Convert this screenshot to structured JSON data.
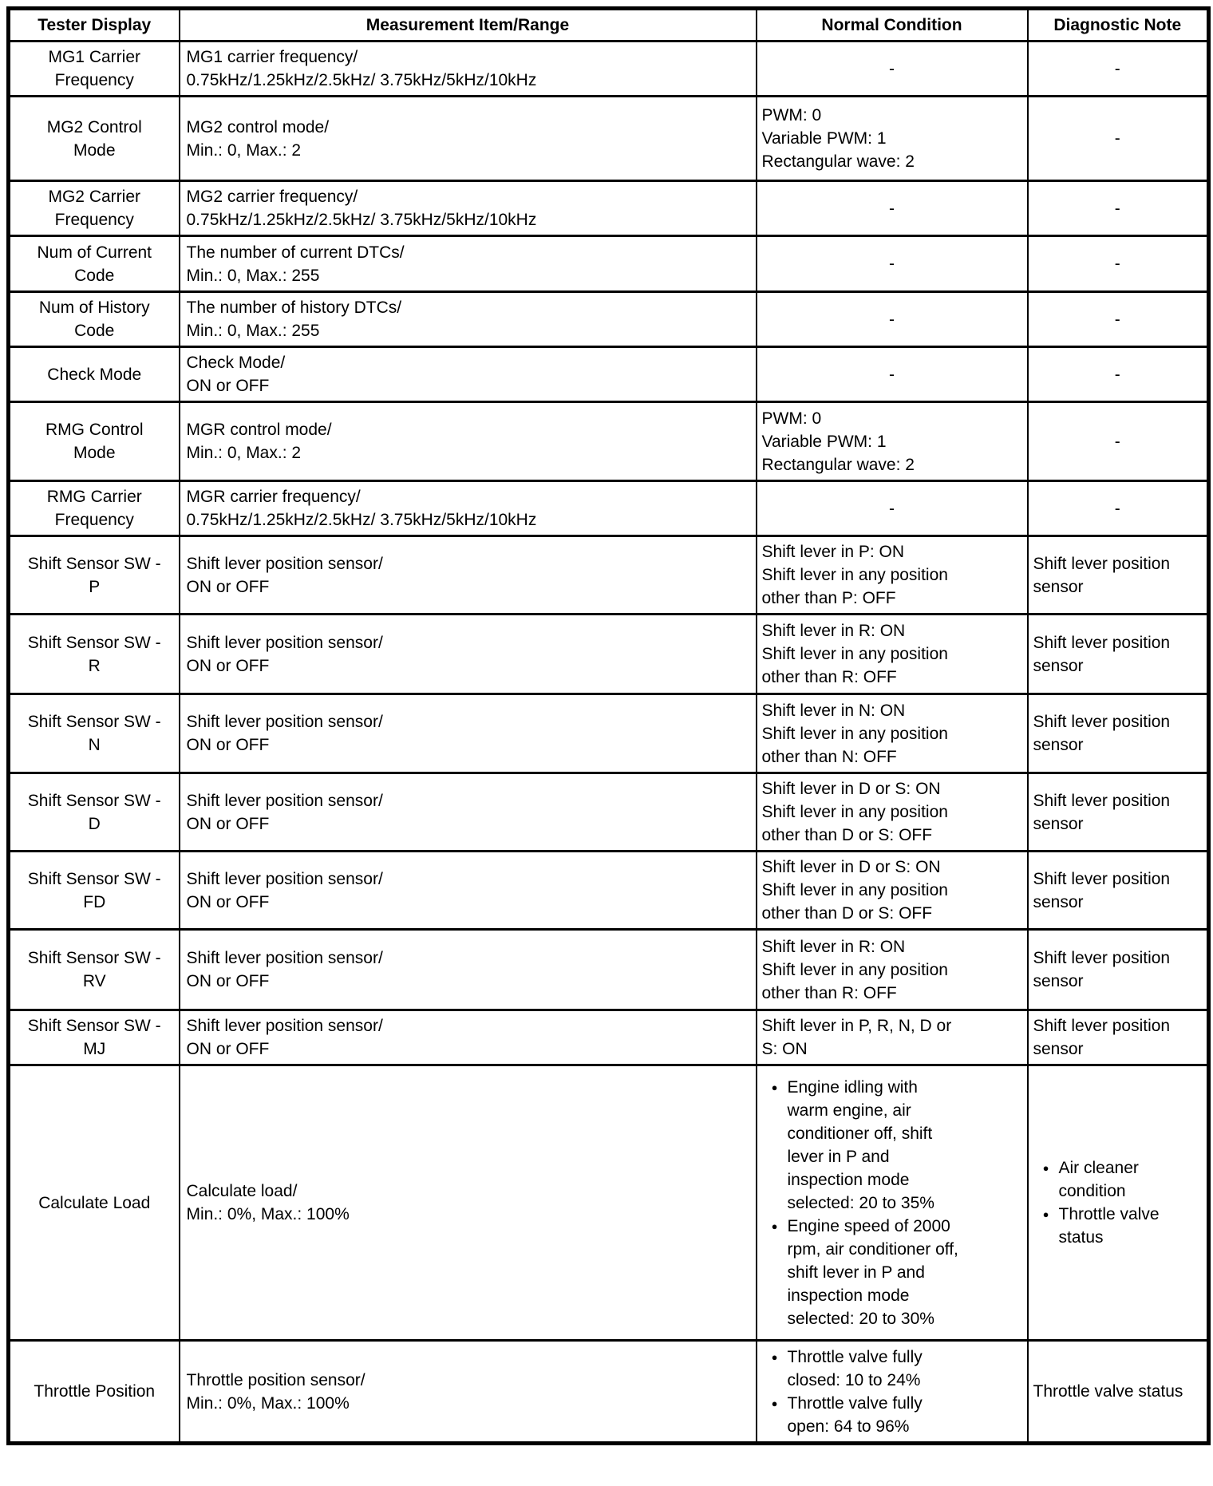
{
  "table": {
    "headers": [
      "Tester Display",
      "Measurement Item/Range",
      "Normal Condition",
      "Diagnostic Note"
    ],
    "rows": [
      {
        "display": [
          "MG1 Carrier",
          "Frequency"
        ],
        "item": [
          "MG1 carrier frequency/",
          "0.75kHz/1.25kHz/2.5kHz/ 3.75kHz/5kHz/10kHz"
        ],
        "condition": {
          "text": [
            "-"
          ],
          "center": true
        },
        "note": {
          "text": [
            "-"
          ],
          "center": true
        }
      },
      {
        "display": [
          "MG2 Control",
          "Mode"
        ],
        "item": [
          "MG2 control mode/",
          "Min.: 0, Max.: 2"
        ],
        "condition": {
          "text": [
            "PWM: 0",
            "Variable PWM: 1",
            "Rectangular wave: 2"
          ]
        },
        "note": {
          "text": [
            "-"
          ],
          "center": true
        }
      },
      {
        "display": [
          "MG2 Carrier",
          "Frequency"
        ],
        "item": [
          "MG2 carrier frequency/",
          "0.75kHz/1.25kHz/2.5kHz/ 3.75kHz/5kHz/10kHz"
        ],
        "condition": {
          "text": [
            "-"
          ],
          "center": true
        },
        "note": {
          "text": [
            "-"
          ],
          "center": true
        }
      },
      {
        "display": [
          "Num of Current",
          "Code"
        ],
        "item": [
          "The number of current DTCs/",
          "Min.: 0, Max.: 255"
        ],
        "condition": {
          "text": [
            "-"
          ],
          "center": true
        },
        "note": {
          "text": [
            "-"
          ],
          "center": true
        }
      },
      {
        "display": [
          "Num of History",
          "Code"
        ],
        "item": [
          "The number of history DTCs/",
          "Min.: 0, Max.: 255"
        ],
        "condition": {
          "text": [
            "-"
          ],
          "center": true
        },
        "note": {
          "text": [
            "-"
          ],
          "center": true
        }
      },
      {
        "display": [
          "Check Mode"
        ],
        "item": [
          "Check Mode/",
          "ON or OFF"
        ],
        "condition": {
          "text": [
            "-"
          ],
          "center": true
        },
        "note": {
          "text": [
            "-"
          ],
          "center": true
        }
      },
      {
        "display": [
          "RMG Control",
          "Mode"
        ],
        "item": [
          "MGR control mode/",
          "Min.: 0, Max.: 2"
        ],
        "condition": {
          "text": [
            "PWM: 0",
            "Variable PWM: 1",
            "Rectangular wave: 2"
          ]
        },
        "note": {
          "text": [
            "-"
          ],
          "center": true
        }
      },
      {
        "display": [
          "RMG Carrier",
          "Frequency"
        ],
        "item": [
          "MGR carrier frequency/",
          "0.75kHz/1.25kHz/2.5kHz/ 3.75kHz/5kHz/10kHz"
        ],
        "condition": {
          "text": [
            "-"
          ],
          "center": true
        },
        "note": {
          "text": [
            "-"
          ],
          "center": true
        }
      },
      {
        "display": [
          "Shift Sensor SW -",
          "P"
        ],
        "item": [
          "Shift lever position sensor/",
          "ON or OFF"
        ],
        "condition": {
          "text": [
            "Shift lever in P: ON",
            "Shift lever in any position",
            "other than P: OFF"
          ]
        },
        "note": {
          "text": [
            "Shift lever position",
            "sensor"
          ]
        }
      },
      {
        "display": [
          "Shift Sensor SW -",
          "R"
        ],
        "item": [
          "Shift lever position sensor/",
          "ON or OFF"
        ],
        "condition": {
          "text": [
            "Shift lever in R: ON",
            "Shift lever in any position",
            "other than R: OFF"
          ]
        },
        "note": {
          "text": [
            "Shift lever position",
            "sensor"
          ]
        }
      },
      {
        "display": [
          "Shift Sensor SW -",
          "N"
        ],
        "item": [
          "Shift lever position sensor/",
          "ON or OFF"
        ],
        "condition": {
          "text": [
            "Shift lever in N: ON",
            "Shift lever in any position",
            "other than N: OFF"
          ]
        },
        "note": {
          "text": [
            "Shift lever position",
            "sensor"
          ]
        }
      },
      {
        "display": [
          "Shift Sensor SW -",
          "D"
        ],
        "item": [
          "Shift lever position sensor/",
          "ON or OFF"
        ],
        "condition": {
          "text": [
            "Shift lever in D or S: ON",
            "Shift lever in any position",
            "other than D or S: OFF"
          ]
        },
        "note": {
          "text": [
            "Shift lever position",
            "sensor"
          ]
        }
      },
      {
        "display": [
          "Shift Sensor SW -",
          "FD"
        ],
        "item": [
          "Shift lever position sensor/",
          "ON or OFF"
        ],
        "condition": {
          "text": [
            "Shift lever in D or S: ON",
            "Shift lever in any position",
            "other than D or S: OFF"
          ]
        },
        "note": {
          "text": [
            "Shift lever position",
            "sensor"
          ]
        }
      },
      {
        "display": [
          "Shift Sensor SW -",
          "RV"
        ],
        "item": [
          "Shift lever position sensor/",
          "ON or OFF"
        ],
        "condition": {
          "text": [
            "Shift lever in R: ON",
            "Shift lever in any position",
            "other than R: OFF"
          ]
        },
        "note": {
          "text": [
            "Shift lever position",
            "sensor"
          ]
        }
      },
      {
        "display": [
          "Shift Sensor SW -",
          "MJ"
        ],
        "item": [
          "Shift lever position sensor/",
          "ON or OFF"
        ],
        "condition": {
          "text": [
            "Shift lever in P, R, N, D or",
            "S: ON"
          ]
        },
        "note": {
          "text": [
            "Shift lever position",
            "sensor"
          ]
        }
      },
      {
        "display": [
          "Calculate Load"
        ],
        "item": [
          "Calculate load/",
          "Min.: 0%, Max.: 100%"
        ],
        "condition": {
          "bullets": [
            [
              "Engine idling with",
              "warm engine, air",
              "conditioner off, shift",
              "lever in P and",
              "inspection mode",
              "selected: 20 to 35%"
            ],
            [
              "Engine speed of 2000",
              "rpm, air conditioner off,",
              "shift lever in P and",
              "inspection mode",
              "selected: 20 to 30%"
            ]
          ]
        },
        "note": {
          "bullets": [
            [
              "Air cleaner",
              "condition"
            ],
            [
              "Throttle valve",
              "status"
            ]
          ]
        }
      },
      {
        "display": [
          "Throttle Position"
        ],
        "item": [
          "Throttle position sensor/",
          "Min.: 0%, Max.: 100%"
        ],
        "condition": {
          "bullets": [
            [
              "Throttle valve fully",
              "closed: 10 to 24%"
            ],
            [
              "Throttle valve fully",
              "open: 64 to 96%"
            ]
          ]
        },
        "note": {
          "text": [
            "Throttle valve status"
          ]
        }
      }
    ]
  }
}
